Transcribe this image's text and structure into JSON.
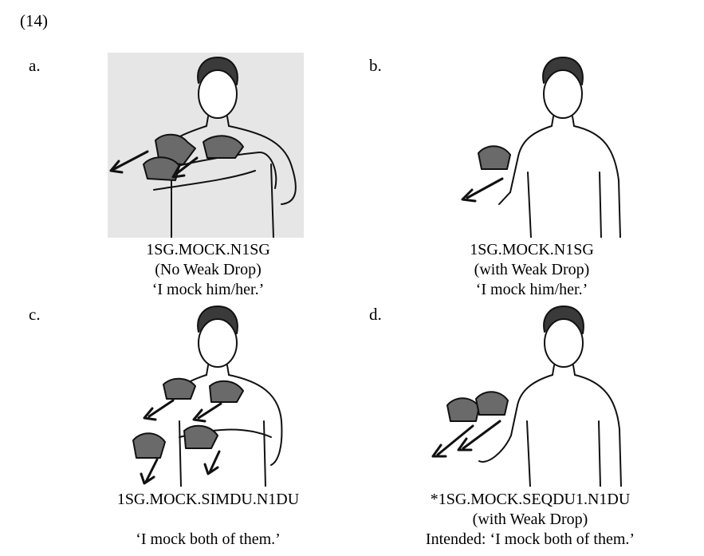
{
  "example_number": "(14)",
  "panels": [
    {
      "label": "a.",
      "gloss": "1SG.MOCK.N1SG",
      "note": "(No Weak Drop)",
      "translation": "‘I mock him/her.’",
      "figure_icon": "signer-two-hands-mock-illustration",
      "background": "#e6e6e6"
    },
    {
      "label": "b.",
      "gloss": "1SG.MOCK.N1SG",
      "note": "(with Weak Drop)",
      "translation": "‘I mock him/her.’",
      "figure_icon": "signer-one-hand-mock-illustration",
      "background": "#ffffff"
    },
    {
      "label": "c.",
      "gloss": "1SG.MOCK.SIMDU.N1DU",
      "note": "",
      "translation": "‘I mock both of them.’",
      "figure_icon": "signer-simultaneous-dual-mock-illustration",
      "background": "#ffffff"
    },
    {
      "label": "d.",
      "gloss": "*1SG.MOCK.SEQDU1.N1DU",
      "note": "(with Weak Drop)",
      "translation": "Intended: ‘I mock both of them.’",
      "figure_icon": "signer-sequential-dual-mock-illustration",
      "background": "#ffffff"
    }
  ]
}
